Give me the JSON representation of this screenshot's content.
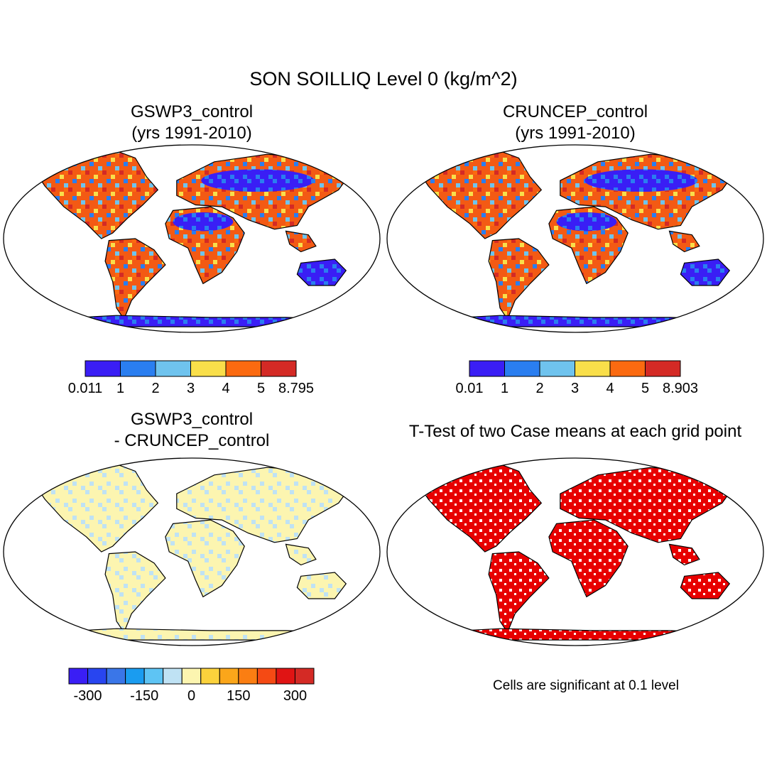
{
  "title": "SON SOILLIQ Level 0 (kg/m^2)",
  "panels": [
    {
      "id": "p1",
      "title_lines": [
        "GSWP3_control",
        "(yrs 1991-2010)"
      ],
      "kind": "abs"
    },
    {
      "id": "p2",
      "title_lines": [
        "CRUNCEP_control",
        "(yrs 1991-2010)"
      ],
      "kind": "abs"
    },
    {
      "id": "p3",
      "title_lines": [
        "GSWP3_control",
        "- CRUNCEP_control"
      ],
      "kind": "diff"
    },
    {
      "id": "p4",
      "title_lines": [
        "T-Test of two Case means at each grid point"
      ],
      "kind": "ttest"
    }
  ],
  "colorbars": [
    {
      "id": "cb1",
      "colors": [
        "#3a1ef5",
        "#2a7ef0",
        "#6fc3ee",
        "#f9df4a",
        "#fb6a10",
        "#d42a25"
      ],
      "labels": [
        "0.011",
        "1",
        "2",
        "3",
        "4",
        "5",
        "8.795"
      ]
    },
    {
      "id": "cb2",
      "colors": [
        "#3a1ef5",
        "#2a7ef0",
        "#6fc3ee",
        "#f9df4a",
        "#fb6a10",
        "#d42a25"
      ],
      "labels": [
        "0.01",
        "1",
        "2",
        "3",
        "4",
        "5",
        "8.903"
      ]
    },
    {
      "id": "cb3",
      "colors": [
        "#3a1ef5",
        "#2845f0",
        "#3a76e8",
        "#1a9cf0",
        "#5ec4f4",
        "#bfe2f4",
        "#fcf5b0",
        "#fbd23c",
        "#fba61a",
        "#fb7e12",
        "#f54a14",
        "#e01414",
        "#d42a25"
      ],
      "labels": [
        "-300",
        "-150",
        "0",
        "150",
        "300"
      ]
    }
  ],
  "ttest_note": "Cells are significant at 0.1 level",
  "colors": {
    "abs_low": "#3a1ef5",
    "abs_mid": "#6fc3ee",
    "abs_high": "#d42a25",
    "diff_pos": "#fcf5b0",
    "diff_neg": "#bfe2f4",
    "ttest": "#e80000"
  }
}
